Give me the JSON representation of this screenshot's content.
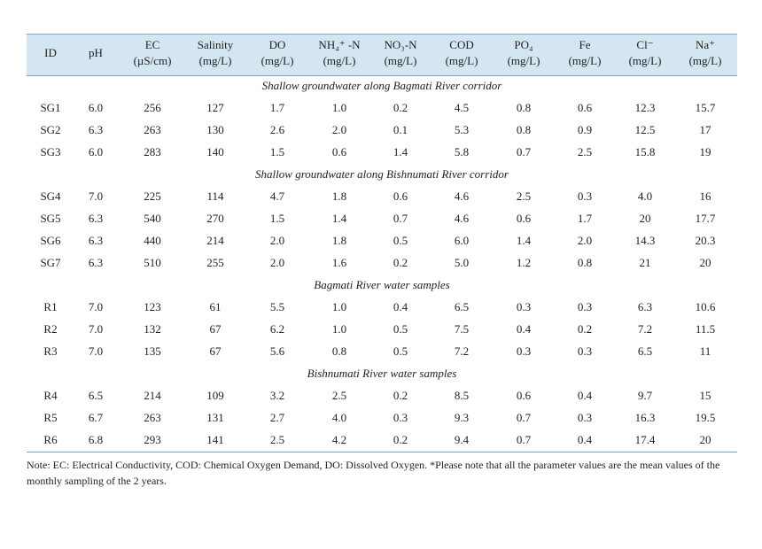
{
  "table": {
    "columns": [
      {
        "name": "ID"
      },
      {
        "name": "pH"
      },
      {
        "name": "EC",
        "unit": "(µS/cm)"
      },
      {
        "name": "Salinity",
        "unit": "(mg/L)"
      },
      {
        "name": "DO",
        "unit": "(mg/L)"
      },
      {
        "name": "NH₄⁺ -N",
        "unit": "(mg/L)"
      },
      {
        "name": "NO₃-N",
        "unit": "(mg/L)"
      },
      {
        "name": "COD",
        "unit": "(mg/L)"
      },
      {
        "name": "PO₄",
        "unit": "(mg/L)"
      },
      {
        "name": "Fe",
        "unit": "(mg/L)"
      },
      {
        "name": "Cl⁻",
        "unit": "(mg/L)"
      },
      {
        "name": "Na⁺",
        "unit": "(mg/L)"
      }
    ],
    "sections": [
      {
        "title": "Shallow groundwater along Bagmati River corridor",
        "rows": [
          [
            "SG1",
            "6.0",
            "256",
            "127",
            "1.7",
            "1.0",
            "0.2",
            "4.5",
            "0.8",
            "0.6",
            "12.3",
            "15.7"
          ],
          [
            "SG2",
            "6.3",
            "263",
            "130",
            "2.6",
            "2.0",
            "0.1",
            "5.3",
            "0.8",
            "0.9",
            "12.5",
            "17"
          ],
          [
            "SG3",
            "6.0",
            "283",
            "140",
            "1.5",
            "0.6",
            "1.4",
            "5.8",
            "0.7",
            "2.5",
            "15.8",
            "19"
          ]
        ]
      },
      {
        "title": "Shallow groundwater along Bishnumati River corridor",
        "rows": [
          [
            "SG4",
            "7.0",
            "225",
            "114",
            "4.7",
            "1.8",
            "0.6",
            "4.6",
            "2.5",
            "0.3",
            "4.0",
            "16"
          ],
          [
            "SG5",
            "6.3",
            "540",
            "270",
            "1.5",
            "1.4",
            "0.7",
            "4.6",
            "0.6",
            "1.7",
            "20",
            "17.7"
          ],
          [
            "SG6",
            "6.3",
            "440",
            "214",
            "2.0",
            "1.8",
            "0.5",
            "6.0",
            "1.4",
            "2.0",
            "14.3",
            "20.3"
          ],
          [
            "SG7",
            "6.3",
            "510",
            "255",
            "2.0",
            "1.6",
            "0.2",
            "5.0",
            "1.2",
            "0.8",
            "21",
            "20"
          ]
        ]
      },
      {
        "title": "Bagmati River water samples",
        "rows": [
          [
            "R1",
            "7.0",
            "123",
            "61",
            "5.5",
            "1.0",
            "0.4",
            "6.5",
            "0.3",
            "0.3",
            "6.3",
            "10.6"
          ],
          [
            "R2",
            "7.0",
            "132",
            "67",
            "6.2",
            "1.0",
            "0.5",
            "7.5",
            "0.4",
            "0.2",
            "7.2",
            "11.5"
          ],
          [
            "R3",
            "7.0",
            "135",
            "67",
            "5.6",
            "0.8",
            "0.5",
            "7.2",
            "0.3",
            "0.3",
            "6.5",
            "11"
          ]
        ]
      },
      {
        "title": "Bishnumati River water samples",
        "rows": [
          [
            "R4",
            "6.5",
            "214",
            "109",
            "3.2",
            "2.5",
            "0.2",
            "8.5",
            "0.6",
            "0.4",
            "9.7",
            "15"
          ],
          [
            "R5",
            "6.7",
            "263",
            "131",
            "2.7",
            "4.0",
            "0.3",
            "9.3",
            "0.7",
            "0.3",
            "16.3",
            "19.5"
          ],
          [
            "R6",
            "6.8",
            "293",
            "141",
            "2.5",
            "4.2",
            "0.2",
            "9.4",
            "0.7",
            "0.4",
            "17.4",
            "20"
          ]
        ]
      }
    ],
    "note": "Note: EC: Electrical Conductivity, COD: Chemical Oxygen Demand, DO: Dissolved Oxygen. *Please note that all the parameter values are the mean values of the monthly sampling of the 2 years."
  }
}
